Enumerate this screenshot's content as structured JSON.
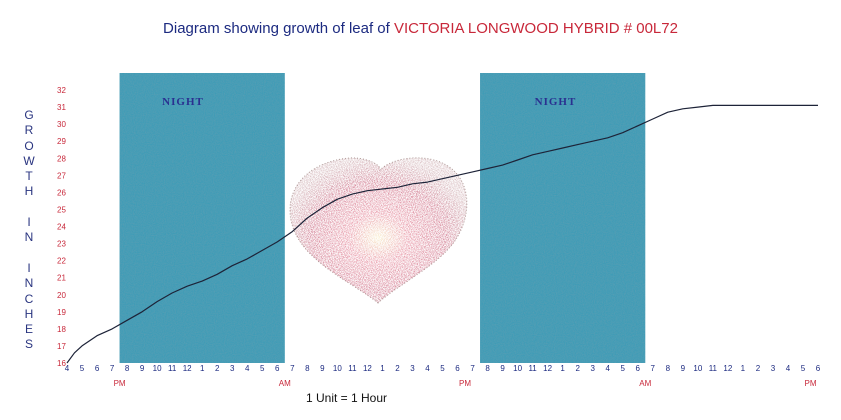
{
  "title": {
    "prefix": "Diagram showing growth of leaf of ",
    "highlight": "VICTORIA LONGWOOD HYBRID # 00L72"
  },
  "colors": {
    "title": "#1c2a80",
    "accent": "#c8283a",
    "night_band": "#3f9cb6",
    "curve": "#1d2338"
  },
  "chart_data": {
    "type": "line",
    "ylabel": "GROWTH IN INCHES",
    "xlabel": "1 Unit = 1 Hour",
    "ylim": [
      16,
      32
    ],
    "y_ticks": [
      "32",
      "31",
      "30",
      "29",
      "28",
      "27",
      "26",
      "25",
      "24",
      "23",
      "22",
      "21",
      "20",
      "19",
      "18",
      "17",
      "16"
    ],
    "x_ticks": [
      "4",
      "5",
      "6",
      "7",
      "8",
      "9",
      "10",
      "11",
      "12",
      "1",
      "2",
      "3",
      "4",
      "5",
      "6",
      "7",
      "8",
      "9",
      "10",
      "11",
      "12",
      "1",
      "2",
      "3",
      "4",
      "5",
      "6",
      "7",
      "8",
      "9",
      "10",
      "11",
      "12",
      "1",
      "2",
      "3",
      "4",
      "5",
      "6",
      "7",
      "8",
      "9",
      "10",
      "11",
      "12",
      "1",
      "2",
      "3",
      "4",
      "5",
      "6"
    ],
    "x_range": [
      0,
      50
    ],
    "ampm_labels": [
      {
        "x": 3.5,
        "text": "PM"
      },
      {
        "x": 14.5,
        "text": "AM"
      },
      {
        "x": 26.5,
        "text": "PM"
      },
      {
        "x": 38.5,
        "text": "AM"
      },
      {
        "x": 49.5,
        "text": "PM"
      }
    ],
    "night_bands": [
      {
        "from": 3.5,
        "to": 14.5,
        "label": "NIGHT"
      },
      {
        "from": 27.5,
        "to": 38.5,
        "label": "NIGHT"
      }
    ],
    "series": [
      {
        "x": [
          0,
          0.5,
          1,
          2,
          3,
          4,
          5,
          6,
          7,
          8,
          9,
          10,
          11,
          12,
          13,
          14,
          15,
          16,
          17,
          18,
          19,
          20,
          21,
          22,
          23,
          24,
          25,
          26,
          27,
          28,
          29,
          30,
          31,
          32,
          33,
          34,
          35,
          36,
          37,
          38,
          39,
          40,
          41,
          42,
          43,
          44,
          45,
          46,
          47,
          48,
          49,
          50
        ],
        "y": [
          16.0,
          16.6,
          17.0,
          17.6,
          18.0,
          18.5,
          19.0,
          19.6,
          20.1,
          20.5,
          20.8,
          21.2,
          21.7,
          22.1,
          22.6,
          23.1,
          23.7,
          24.5,
          25.1,
          25.6,
          25.9,
          26.1,
          26.2,
          26.3,
          26.5,
          26.6,
          26.8,
          27.0,
          27.2,
          27.4,
          27.6,
          27.9,
          28.2,
          28.4,
          28.6,
          28.8,
          29.0,
          29.2,
          29.5,
          29.9,
          30.3,
          30.7,
          30.9,
          31.0,
          31.1,
          31.1,
          31.1,
          31.1,
          31.1,
          31.1,
          31.1,
          31.1
        ]
      }
    ]
  }
}
